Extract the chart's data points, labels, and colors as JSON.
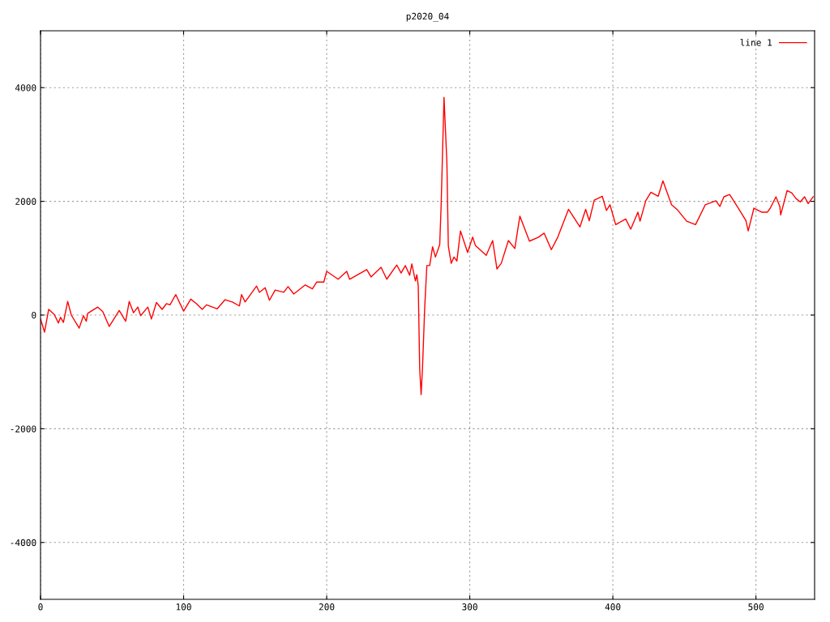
{
  "chart_data": {
    "type": "line",
    "title": "p2020_04",
    "xlim": [
      0,
      541
    ],
    "ylim": [
      -5000,
      5000
    ],
    "xticks": [
      0,
      100,
      200,
      300,
      400,
      500
    ],
    "yticks": [
      -4000,
      -2000,
      0,
      2000,
      4000
    ],
    "grid": true,
    "legend": "top right",
    "marker": "none",
    "line_style": "solid",
    "series": [
      {
        "name": "line 1",
        "color": "#ff0000",
        "x": [
          0,
          2.8,
          5.7,
          9.6,
          12.5,
          14,
          16,
          19,
          21.5,
          27,
          30,
          32,
          33,
          40,
          43.5,
          48,
          55,
          59.5,
          62,
          65,
          68,
          70,
          75,
          77.5,
          81,
          85,
          88,
          90.5,
          94.5,
          100,
          105,
          109,
          113,
          116,
          123.5,
          129,
          134,
          139,
          140.5,
          143,
          151,
          153,
          157,
          160,
          164,
          170,
          173,
          177,
          185,
          190,
          193,
          198,
          200,
          208,
          214,
          216,
          228,
          231,
          238,
          242,
          249,
          252,
          255,
          258,
          259.5,
          262,
          263,
          264,
          265,
          266,
          267,
          268.5,
          270,
          272,
          274,
          276,
          279,
          280,
          282,
          284,
          285,
          287,
          289,
          291,
          293.5,
          298.5,
          302,
          304,
          311.5,
          316,
          319,
          322,
          327,
          331.5,
          335,
          341.7,
          348,
          352,
          357,
          361.5,
          369,
          377,
          381,
          383.5,
          387,
          392.6,
          395.5,
          398,
          402,
          409,
          412.5,
          417.5,
          419,
          423,
          426.6,
          431.7,
          435,
          441,
          444.8,
          451.6,
          457.8,
          464.6,
          472,
          474.8,
          477.6,
          481.6,
          484.4,
          488.4,
          493,
          494.6,
          498.6,
          504,
          508,
          510,
          514,
          516.7,
          517.3,
          521.8,
          525,
          528,
          531,
          534,
          536.5,
          540
        ],
        "values": [
          -70,
          -300,
          100,
          10,
          -140,
          -40,
          -130,
          240,
          0,
          -230,
          -10,
          -110,
          30,
          140,
          60,
          -200,
          80,
          -110,
          240,
          40,
          140,
          -10,
          140,
          -70,
          220,
          100,
          200,
          180,
          360,
          70,
          280,
          200,
          100,
          180,
          110,
          270,
          230,
          160,
          360,
          230,
          510,
          400,
          480,
          260,
          440,
          400,
          500,
          370,
          530,
          460,
          580,
          580,
          770,
          630,
          770,
          630,
          800,
          670,
          840,
          630,
          880,
          740,
          870,
          700,
          900,
          600,
          710,
          510,
          -940,
          -1400,
          -910,
          130,
          870,
          870,
          1200,
          1020,
          1240,
          1940,
          3830,
          2690,
          1220,
          910,
          1020,
          950,
          1480,
          1100,
          1370,
          1220,
          1050,
          1310,
          810,
          910,
          1310,
          1170,
          1740,
          1300,
          1370,
          1440,
          1150,
          1370,
          1860,
          1550,
          1860,
          1660,
          2020,
          2090,
          1840,
          1940,
          1590,
          1690,
          1510,
          1810,
          1650,
          2010,
          2160,
          2090,
          2360,
          1940,
          1860,
          1650,
          1590,
          1940,
          2010,
          1910,
          2080,
          2120,
          2010,
          1850,
          1660,
          1480,
          1880,
          1810,
          1810,
          1880,
          2080,
          1910,
          1760,
          2190,
          2150,
          2050,
          1990,
          2080,
          1960,
          2080
        ]
      }
    ]
  }
}
